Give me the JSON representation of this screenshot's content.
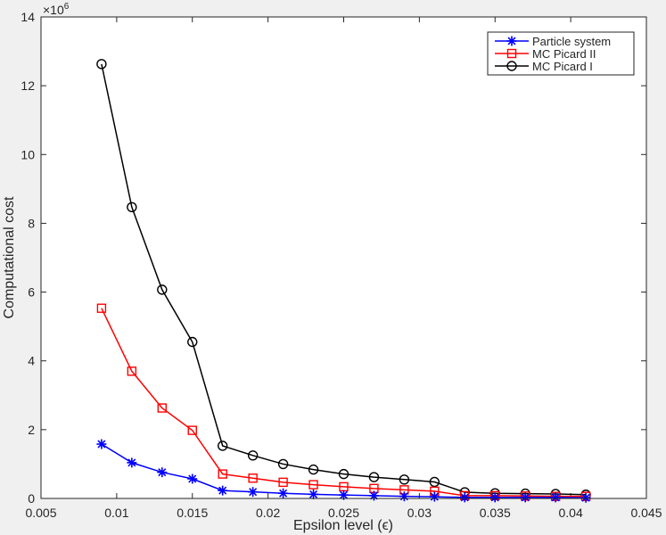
{
  "chart_data": {
    "type": "line",
    "title": "",
    "xlabel": "Epsilon level (ϵ)",
    "ylabel": "Computational cost",
    "xlim": [
      0.005,
      0.045
    ],
    "ylim": [
      0,
      14000000
    ],
    "y_exponent_label": "×10",
    "y_exponent_power": "6",
    "grid": false,
    "legend_position": "top-right",
    "x_ticks": [
      0.005,
      0.01,
      0.015,
      0.02,
      0.025,
      0.03,
      0.035,
      0.04,
      0.045
    ],
    "x_tick_labels": [
      "0.005",
      "0.01",
      "0.015",
      "0.02",
      "0.025",
      "0.03",
      "0.035",
      "0.04",
      "0.045"
    ],
    "y_ticks": [
      0,
      2000000,
      4000000,
      6000000,
      8000000,
      10000000,
      12000000,
      14000000
    ],
    "y_tick_labels": [
      "0",
      "2",
      "4",
      "6",
      "8",
      "10",
      "12",
      "14"
    ],
    "x": [
      0.009,
      0.011,
      0.013,
      0.015,
      0.017,
      0.019,
      0.021,
      0.023,
      0.025,
      0.027,
      0.029,
      0.031,
      0.033,
      0.035,
      0.037,
      0.039,
      0.041
    ],
    "series": [
      {
        "name": "Particle system",
        "color": "#0000ff",
        "marker": "asterisk",
        "values": [
          1580000,
          1040000,
          760000,
          570000,
          230000,
          190000,
          150000,
          120000,
          100000,
          80000,
          60000,
          50000,
          30000,
          30000,
          30000,
          30000,
          20000
        ]
      },
      {
        "name": "MC Picard II",
        "color": "#ff0000",
        "marker": "square",
        "values": [
          5530000,
          3700000,
          2630000,
          1980000,
          710000,
          590000,
          470000,
          400000,
          340000,
          290000,
          250000,
          210000,
          80000,
          80000,
          70000,
          60000,
          60000
        ]
      },
      {
        "name": "MC Picard I",
        "color": "#000000",
        "marker": "circle",
        "values": [
          12630000,
          8470000,
          6070000,
          4550000,
          1530000,
          1250000,
          1000000,
          840000,
          710000,
          620000,
          550000,
          480000,
          180000,
          150000,
          140000,
          130000,
          110000
        ]
      }
    ]
  }
}
